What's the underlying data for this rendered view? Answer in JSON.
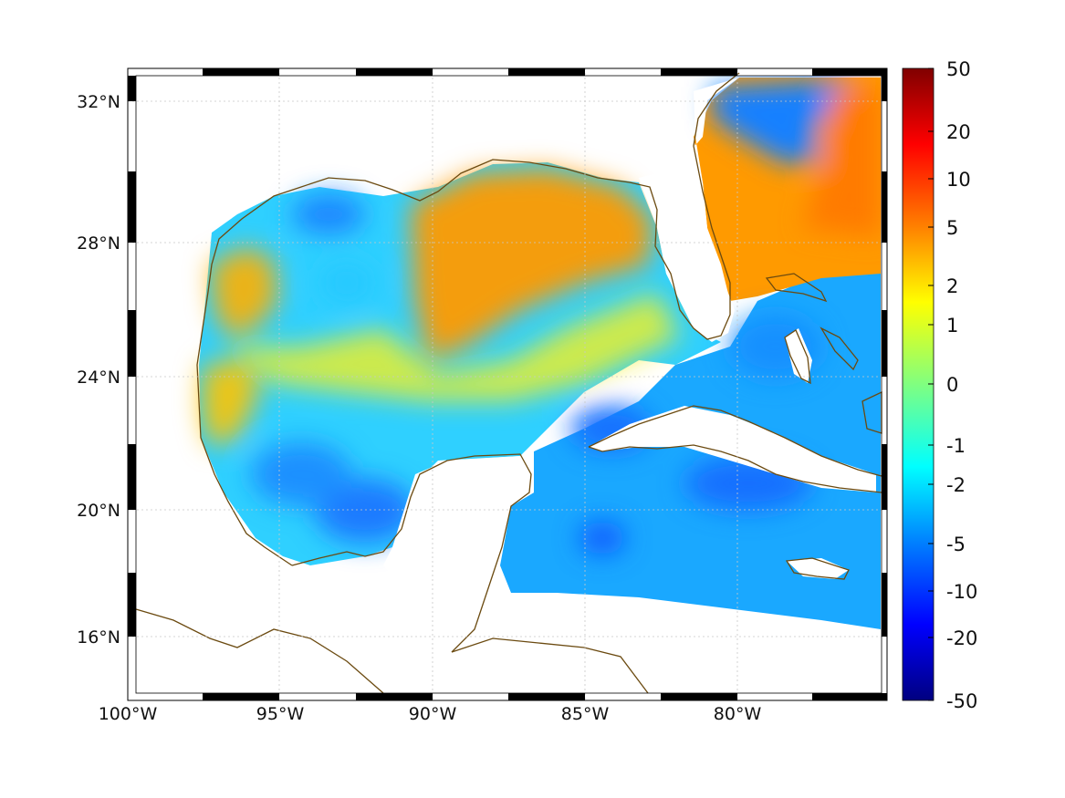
{
  "map": {
    "lat_labels": [
      "32°N",
      "28°N",
      "24°N",
      "20°N",
      "16°N"
    ],
    "lon_labels": [
      "100°W",
      "95°W",
      "90°W",
      "85°W",
      "80°W"
    ],
    "land_color": "#ffffff",
    "coastline_color": "#6b4a10",
    "grid": "dotted"
  },
  "colorbar": {
    "tick_labels": [
      "50",
      "20",
      "10",
      "5",
      "2",
      "1",
      "0",
      "-1",
      "-2",
      "-5",
      "-10",
      "-20",
      "-50"
    ],
    "colormap": "jet",
    "colors_top_to_bottom": [
      "#800000",
      "#ff0000",
      "#ff8000",
      "#ffff00",
      "#80ff80",
      "#00ffff",
      "#0080ff",
      "#0000ff",
      "#000080"
    ]
  }
}
